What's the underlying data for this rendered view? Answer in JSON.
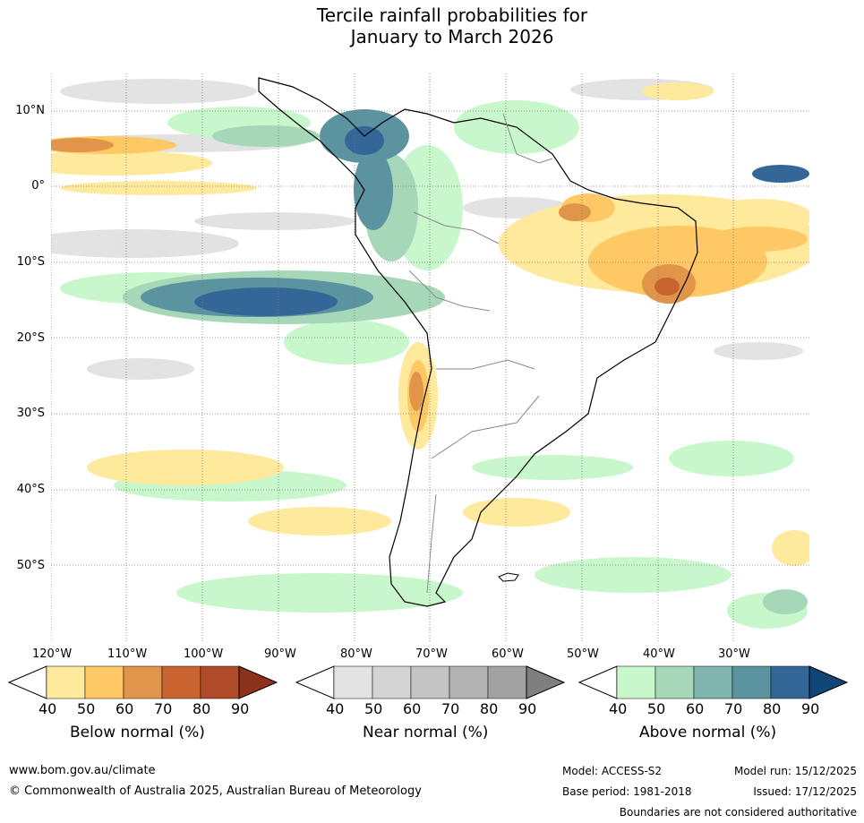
{
  "title": {
    "line1": "Tercile rainfall probabilities for",
    "line2": "January to March 2026"
  },
  "map": {
    "lat_labels": [
      "10°N",
      "0°",
      "10°S",
      "20°S",
      "30°S",
      "40°S",
      "50°S"
    ],
    "lon_labels": [
      "120°W",
      "110°W",
      "100°W",
      "90°W",
      "80°W",
      "70°W",
      "60°W",
      "50°W",
      "40°W",
      "30°W"
    ]
  },
  "colorbars": [
    {
      "title": "Below normal (%)",
      "ticks": [
        "40",
        "50",
        "60",
        "70",
        "80",
        "90"
      ],
      "colors": [
        "#fee99c",
        "#fec965",
        "#e1954b",
        "#c9632f",
        "#b14a26",
        "#8c321c"
      ]
    },
    {
      "title": "Near normal (%)",
      "ticks": [
        "40",
        "50",
        "60",
        "70",
        "80",
        "90"
      ],
      "colors": [
        "#e3e3e3",
        "#d4d4d4",
        "#c4c4c4",
        "#b3b3b3",
        "#a2a2a2",
        "#7f7f7f"
      ]
    },
    {
      "title": "Above normal (%)",
      "ticks": [
        "40",
        "50",
        "60",
        "70",
        "80",
        "90"
      ],
      "colors": [
        "#c8f7cc",
        "#a6d7b8",
        "#7fb5ae",
        "#5b93a0",
        "#346798",
        "#0f4677"
      ]
    }
  ],
  "footer": {
    "url": "www.bom.gov.au/climate",
    "copyright": "© Commonwealth of Australia 2025, Australian Bureau of Meteorology",
    "model": "Model: ACCESS-S2",
    "model_run": "Model run: 15/12/2025",
    "base_period": "Base period: 1981-2018",
    "issued": "Issued: 17/12/2025",
    "boundaries_note": "Boundaries are not considered authoritative"
  }
}
